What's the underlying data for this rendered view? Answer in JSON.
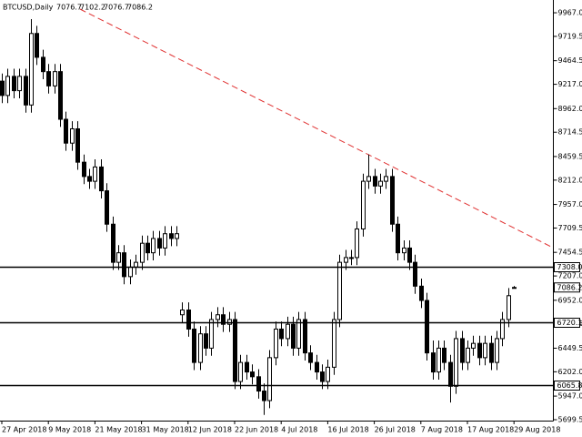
{
  "chart_data": {
    "type": "candlestick",
    "title": "BTCUSD,Daily",
    "categories": [
      "27 Apr 2018",
      null,
      null,
      null,
      null,
      null,
      null,
      null,
      "9 May 2018",
      null,
      null,
      null,
      null,
      null,
      null,
      null,
      "21 May 2018",
      null,
      null,
      null,
      null,
      null,
      null,
      null,
      "31 May 2018",
      null,
      null,
      null,
      null,
      null,
      null,
      null,
      "12 Jun 2018",
      null,
      null,
      null,
      null,
      null,
      null,
      null,
      "22 Jun 2018",
      null,
      null,
      null,
      null,
      null,
      null,
      null,
      "4 Jul 2018",
      null,
      null,
      null,
      null,
      null,
      null,
      null,
      "16 Jul 2018",
      null,
      null,
      null,
      null,
      null,
      null,
      null,
      "26 Jul 2018",
      null,
      null,
      null,
      null,
      null,
      null,
      null,
      "7 Aug 2018",
      null,
      null,
      null,
      null,
      null,
      null,
      null,
      "17 Aug 2018",
      null,
      null,
      null,
      null,
      null,
      null,
      null,
      "29 Aug 2018"
    ],
    "open": [
      9250,
      9100,
      9300,
      9150,
      9300,
      9000,
      9750,
      9500,
      9350,
      9200,
      9350,
      8850,
      8600,
      8750,
      8400,
      8250,
      8200,
      8350,
      8100,
      7750,
      7350,
      7450,
      7200,
      7300,
      7350,
      7550,
      7450,
      7600,
      7500,
      7650,
      7600,
      6800,
      6850,
      6650,
      6300,
      6600,
      6450,
      6750,
      6800,
      6700,
      6750,
      6100,
      6300,
      6200,
      6150,
      6000,
      5900,
      6350,
      6650,
      6550,
      6700,
      6450,
      6750,
      6400,
      6300,
      6200,
      6100,
      6250,
      6750,
      7350,
      7400,
      7400,
      7700,
      8200,
      8250,
      8150,
      8200,
      8250,
      7750,
      7450,
      7500,
      7350,
      7100,
      6950,
      6400,
      6200,
      6450,
      6300,
      6050,
      6550,
      6300,
      6450,
      6500,
      6350,
      6500,
      6300,
      6550,
      6750,
      7076.7
    ],
    "high": [
      9330,
      9380,
      9380,
      9380,
      9380,
      9900,
      9830,
      9580,
      9430,
      9430,
      9430,
      8930,
      8830,
      8830,
      8480,
      8330,
      8430,
      8430,
      8180,
      7830,
      7530,
      7530,
      7380,
      7430,
      7630,
      7630,
      7680,
      7680,
      7730,
      7730,
      7730,
      6930,
      6930,
      6730,
      6680,
      6680,
      6830,
      6880,
      6880,
      6830,
      6830,
      6380,
      6380,
      6280,
      6230,
      6080,
      6430,
      6730,
      6730,
      6780,
      6780,
      6830,
      6830,
      6480,
      6380,
      6280,
      6330,
      6830,
      7430,
      7480,
      7480,
      7780,
      8280,
      8480,
      8330,
      8280,
      8330,
      8330,
      7830,
      7580,
      7580,
      7430,
      7180,
      7030,
      6530,
      6530,
      6530,
      6380,
      6630,
      6630,
      6530,
      6580,
      6580,
      6580,
      6580,
      6630,
      6830,
      7080,
      7102.2
    ],
    "low": [
      9020,
      9020,
      9070,
      9070,
      8920,
      8920,
      9420,
      9270,
      9120,
      9120,
      8770,
      8520,
      8520,
      8320,
      8170,
      8120,
      8120,
      8020,
      7670,
      7270,
      7270,
      7120,
      7120,
      7220,
      7270,
      7370,
      7370,
      7420,
      7420,
      7520,
      7520,
      6720,
      6570,
      6220,
      6220,
      6370,
      6370,
      6670,
      6620,
      6620,
      6020,
      6020,
      6120,
      6070,
      5920,
      5750,
      5820,
      6270,
      6470,
      6470,
      6370,
      6370,
      6320,
      6220,
      6120,
      6020,
      6020,
      6170,
      6670,
      7270,
      7320,
      7320,
      7620,
      8120,
      8070,
      8070,
      8120,
      7670,
      7370,
      7370,
      7270,
      7020,
      6870,
      6320,
      6120,
      6120,
      6220,
      5880,
      5970,
      6220,
      6220,
      6370,
      6270,
      6270,
      6220,
      6220,
      6470,
      6670,
      7076.7
    ],
    "close": [
      9100,
      9300,
      9150,
      9300,
      9000,
      9750,
      9500,
      9350,
      9200,
      9350,
      8850,
      8600,
      8750,
      8400,
      8250,
      8200,
      8350,
      8100,
      7750,
      7350,
      7450,
      7200,
      7300,
      7350,
      7550,
      7450,
      7600,
      7500,
      7650,
      7600,
      7650,
      6850,
      6650,
      6300,
      6600,
      6450,
      6750,
      6800,
      6700,
      6750,
      6100,
      6300,
      6200,
      6150,
      6000,
      5900,
      6350,
      6650,
      6550,
      6700,
      6450,
      6750,
      6400,
      6300,
      6200,
      6100,
      6250,
      6750,
      7350,
      7400,
      7400,
      7700,
      8200,
      8250,
      8150,
      8200,
      8250,
      7750,
      7450,
      7500,
      7350,
      7100,
      6950,
      6400,
      6200,
      6450,
      6300,
      6050,
      6550,
      6300,
      6450,
      6500,
      6350,
      6500,
      6300,
      6550,
      6750,
      7000,
      7086.2
    ],
    "ylim": [
      5690,
      10101
    ],
    "yticks": [
      {
        "value": 9967,
        "label": "9967.0"
      },
      {
        "value": 9719.5,
        "label": "9719.5"
      },
      {
        "value": 9464.5,
        "label": "9464.5"
      },
      {
        "value": 9217,
        "label": "9217.0"
      },
      {
        "value": 8962,
        "label": "8962.0"
      },
      {
        "value": 8714.5,
        "label": "8714.5"
      },
      {
        "value": 8459.5,
        "label": "8459.5"
      },
      {
        "value": 8212,
        "label": "8212.0"
      },
      {
        "value": 7957,
        "label": "7957.0"
      },
      {
        "value": 7709.5,
        "label": "7709.5"
      },
      {
        "value": 7454.5,
        "label": "7454.5"
      },
      {
        "value": 7207,
        "label": "7207.0"
      },
      {
        "value": 6952,
        "label": "6952.0"
      },
      {
        "value": 6704.5,
        "label": "6704.5"
      },
      {
        "value": 6449.5,
        "label": "6449.5"
      },
      {
        "value": 6202,
        "label": "6202.0"
      },
      {
        "value": 5947,
        "label": "5947.0"
      },
      {
        "value": 5699.5,
        "label": "5699.5"
      }
    ],
    "levels": [
      {
        "value": 7308,
        "label": "7308.0"
      },
      {
        "value": 6720.1,
        "label": "6720.1"
      },
      {
        "value": 6065.8,
        "label": "6065.8"
      }
    ],
    "bull_color": "#ffffff",
    "bear_color": "#000000",
    "line_color": "#000000"
  }
}
